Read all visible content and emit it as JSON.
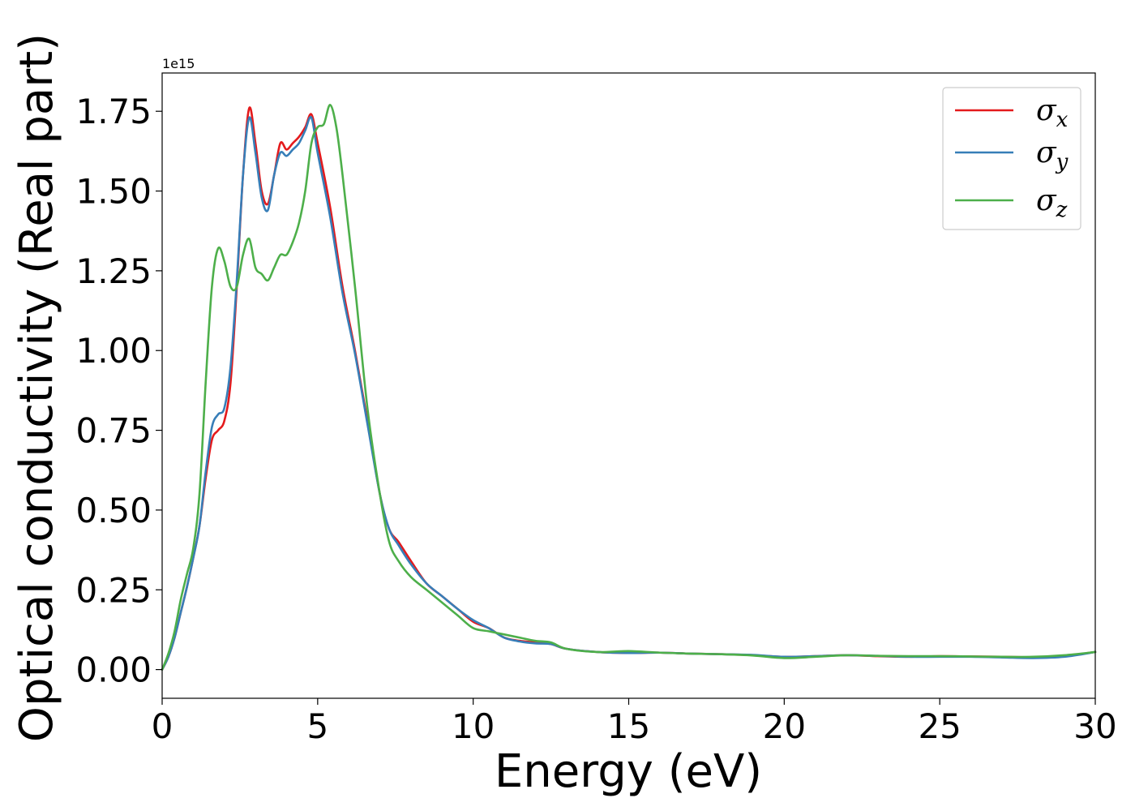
{
  "chart_data": {
    "type": "line",
    "title": "",
    "xlabel": "Energy (eV)",
    "ylabel": "Optical conductivity (Real part)",
    "y_multiplier_label": "1e15",
    "xlim": [
      0,
      30
    ],
    "ylim": [
      -0.09,
      1.87
    ],
    "x_ticks": [
      0,
      5,
      10,
      15,
      20,
      25,
      30
    ],
    "y_ticks": [
      0.0,
      0.25,
      0.5,
      0.75,
      1.0,
      1.25,
      1.5,
      1.75
    ],
    "x_tick_labels": [
      "0",
      "5",
      "10",
      "15",
      "20",
      "25",
      "30"
    ],
    "y_tick_labels": [
      "0.00",
      "0.25",
      "0.50",
      "0.75",
      "1.00",
      "1.25",
      "1.50",
      "1.75"
    ],
    "grid": false,
    "legend_position": "top-right",
    "series": [
      {
        "name": "σ",
        "subscript": "x",
        "color": "#e41a1c",
        "x": [
          0,
          0.2,
          0.4,
          0.6,
          0.8,
          1.0,
          1.2,
          1.4,
          1.6,
          1.8,
          2.0,
          2.2,
          2.4,
          2.6,
          2.8,
          3.0,
          3.2,
          3.4,
          3.6,
          3.8,
          4.0,
          4.2,
          4.4,
          4.6,
          4.8,
          5.0,
          5.4,
          5.8,
          6.2,
          6.6,
          7.0,
          7.3,
          7.6,
          8.0,
          8.5,
          9.0,
          9.5,
          10.0,
          10.5,
          11.0,
          11.5,
          12.0,
          12.5,
          13.0,
          14.0,
          15.0,
          16.0,
          17.0,
          18.0,
          19.0,
          20.0,
          21.0,
          22.0,
          23.0,
          24.0,
          25.0,
          26.0,
          27.0,
          28.0,
          29.0,
          30.0
        ],
        "y": [
          0.0,
          0.04,
          0.1,
          0.18,
          0.26,
          0.35,
          0.45,
          0.6,
          0.72,
          0.75,
          0.78,
          0.9,
          1.2,
          1.55,
          1.76,
          1.65,
          1.5,
          1.46,
          1.55,
          1.65,
          1.63,
          1.65,
          1.67,
          1.7,
          1.74,
          1.65,
          1.45,
          1.2,
          1.0,
          0.78,
          0.55,
          0.44,
          0.4,
          0.34,
          0.27,
          0.23,
          0.19,
          0.15,
          0.13,
          0.1,
          0.09,
          0.085,
          0.08,
          0.065,
          0.055,
          0.052,
          0.053,
          0.05,
          0.048,
          0.045,
          0.04,
          0.042,
          0.045,
          0.042,
          0.04,
          0.042,
          0.041,
          0.04,
          0.039,
          0.043,
          0.055
        ]
      },
      {
        "name": "σ",
        "subscript": "y",
        "color": "#377eb8",
        "x": [
          0,
          0.2,
          0.4,
          0.6,
          0.8,
          1.0,
          1.2,
          1.4,
          1.6,
          1.8,
          2.0,
          2.2,
          2.4,
          2.6,
          2.8,
          3.0,
          3.2,
          3.4,
          3.6,
          3.8,
          4.0,
          4.2,
          4.4,
          4.6,
          4.8,
          5.0,
          5.4,
          5.8,
          6.2,
          6.6,
          7.0,
          7.3,
          7.6,
          8.0,
          8.5,
          9.0,
          9.5,
          10.0,
          10.5,
          11.0,
          11.5,
          12.0,
          12.5,
          13.0,
          14.0,
          15.0,
          16.0,
          17.0,
          18.0,
          19.0,
          20.0,
          21.0,
          22.0,
          23.0,
          24.0,
          25.0,
          26.0,
          27.0,
          28.0,
          29.0,
          30.0
        ],
        "y": [
          0.0,
          0.04,
          0.1,
          0.18,
          0.26,
          0.35,
          0.45,
          0.62,
          0.76,
          0.8,
          0.82,
          0.95,
          1.22,
          1.55,
          1.73,
          1.62,
          1.48,
          1.44,
          1.55,
          1.62,
          1.61,
          1.63,
          1.65,
          1.69,
          1.73,
          1.62,
          1.42,
          1.18,
          0.99,
          0.77,
          0.55,
          0.44,
          0.39,
          0.33,
          0.27,
          0.23,
          0.19,
          0.155,
          0.13,
          0.1,
          0.088,
          0.082,
          0.08,
          0.065,
          0.055,
          0.052,
          0.053,
          0.05,
          0.048,
          0.046,
          0.04,
          0.042,
          0.045,
          0.043,
          0.04,
          0.04,
          0.04,
          0.038,
          0.036,
          0.04,
          0.055
        ]
      },
      {
        "name": "σ",
        "subscript": "z",
        "color": "#4daf4a",
        "x": [
          0,
          0.2,
          0.4,
          0.6,
          0.8,
          1.0,
          1.2,
          1.4,
          1.6,
          1.8,
          2.0,
          2.2,
          2.4,
          2.6,
          2.8,
          3.0,
          3.2,
          3.4,
          3.6,
          3.8,
          4.0,
          4.2,
          4.4,
          4.6,
          4.8,
          5.0,
          5.2,
          5.4,
          5.6,
          5.8,
          6.2,
          6.6,
          7.0,
          7.3,
          7.6,
          8.0,
          8.5,
          9.0,
          9.5,
          10.0,
          10.5,
          11.0,
          11.5,
          12.0,
          12.5,
          13.0,
          14.0,
          15.0,
          16.0,
          17.0,
          18.0,
          19.0,
          20.0,
          21.0,
          22.0,
          23.0,
          24.0,
          25.0,
          26.0,
          27.0,
          28.0,
          29.0,
          30.0
        ],
        "y": [
          0.0,
          0.05,
          0.12,
          0.22,
          0.3,
          0.38,
          0.55,
          0.9,
          1.2,
          1.32,
          1.28,
          1.2,
          1.2,
          1.3,
          1.35,
          1.26,
          1.24,
          1.22,
          1.26,
          1.3,
          1.3,
          1.34,
          1.4,
          1.5,
          1.65,
          1.7,
          1.71,
          1.77,
          1.7,
          1.55,
          1.2,
          0.82,
          0.55,
          0.4,
          0.34,
          0.29,
          0.25,
          0.21,
          0.17,
          0.13,
          0.12,
          0.11,
          0.1,
          0.09,
          0.085,
          0.065,
          0.055,
          0.058,
          0.053,
          0.05,
          0.048,
          0.044,
          0.036,
          0.04,
          0.045,
          0.043,
          0.042,
          0.042,
          0.041,
          0.04,
          0.04,
          0.045,
          0.055
        ]
      }
    ]
  }
}
